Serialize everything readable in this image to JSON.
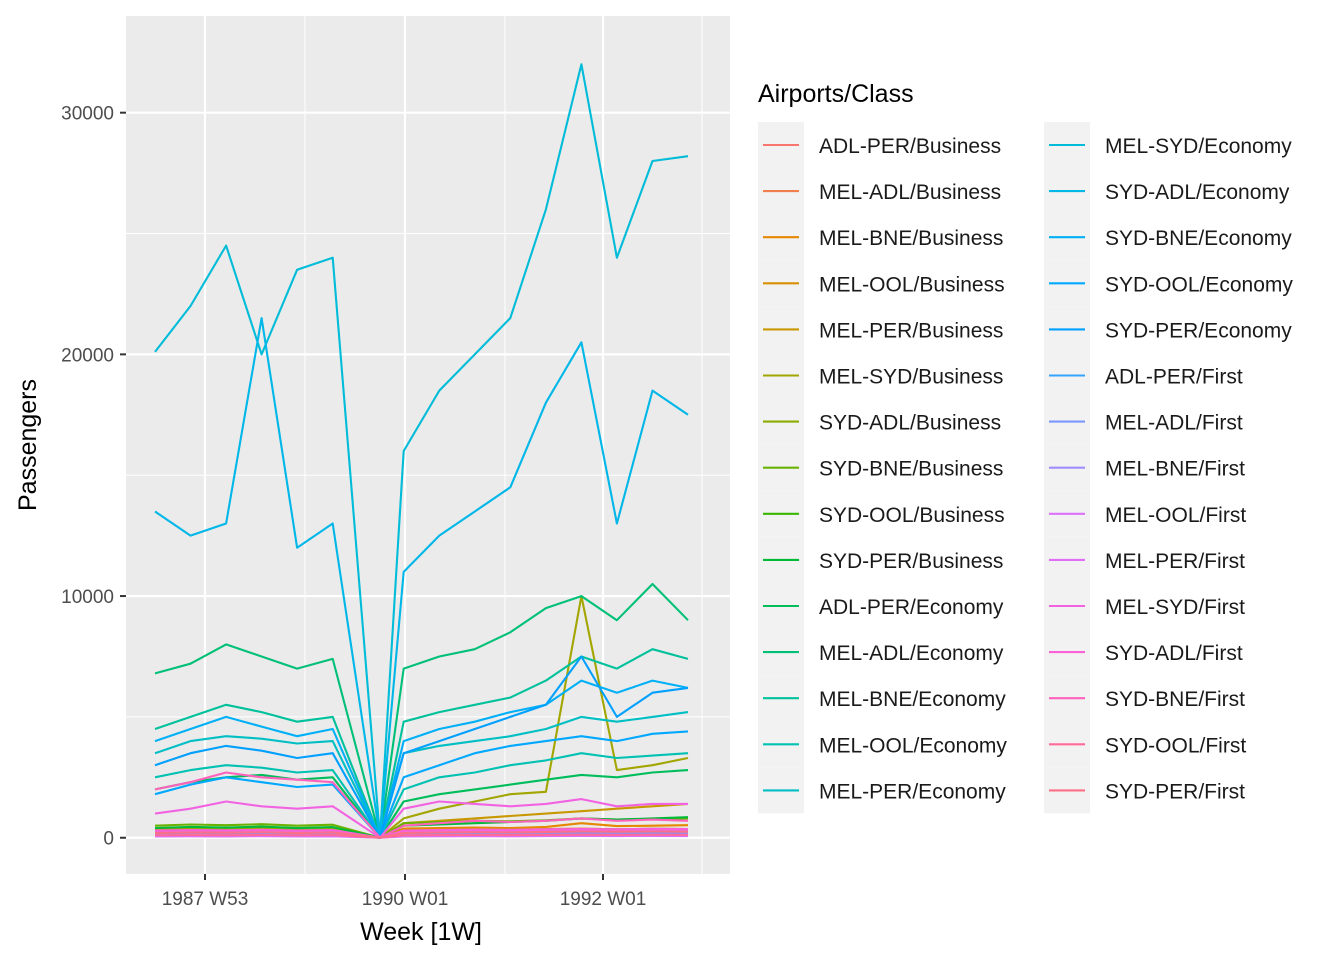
{
  "chart_data": {
    "type": "line",
    "title": "",
    "xlabel": "Week [1W]",
    "ylabel": "Passengers",
    "legend_title": "Airports/Class",
    "legend_position": "right",
    "grid": true,
    "x_ticks": [
      "1987 W53",
      "1990 W01",
      "1992 W01"
    ],
    "y_ticks": [
      0,
      10000,
      20000,
      30000
    ],
    "xlim": [
      "1987 W26",
      "1993 W46"
    ],
    "ylim": [
      -1500,
      34000
    ],
    "x_range_weeks": [
      1987.45,
      1993.0
    ],
    "series": [
      {
        "name": "ADL-PER/Business",
        "color": "#F8766D",
        "values": [
          250,
          300,
          280,
          320,
          260,
          300,
          0,
          290,
          310,
          330,
          300,
          320,
          340,
          310,
          330,
          320
        ]
      },
      {
        "name": "MEL-ADL/Business",
        "color": "#F07E4E",
        "values": [
          300,
          320,
          310,
          340,
          300,
          330,
          0,
          320,
          340,
          350,
          330,
          360,
          380,
          350,
          370,
          360
        ]
      },
      {
        "name": "MEL-BNE/Business",
        "color": "#E58700",
        "values": [
          350,
          380,
          360,
          390,
          340,
          370,
          0,
          380,
          400,
          420,
          400,
          450,
          600,
          480,
          500,
          520
        ]
      },
      {
        "name": "MEL-OOL/Business",
        "color": "#D89000",
        "values": [
          100,
          120,
          110,
          130,
          100,
          120,
          0,
          110,
          120,
          130,
          120,
          130,
          140,
          130,
          140,
          130
        ]
      },
      {
        "name": "MEL-PER/Business",
        "color": "#C99800",
        "values": [
          300,
          320,
          340,
          350,
          330,
          340,
          0,
          600,
          700,
          800,
          900,
          1000,
          1100,
          1200,
          1300,
          1400
        ]
      },
      {
        "name": "MEL-SYD/Business",
        "color": "#A3A500",
        "values": [
          300,
          350,
          400,
          380,
          360,
          400,
          0,
          800,
          1200,
          1500,
          1800,
          1900,
          10000,
          2800,
          3000,
          3300
        ]
      },
      {
        "name": "SYD-ADL/Business",
        "color": "#8AAB00",
        "values": [
          300,
          320,
          310,
          330,
          300,
          320,
          0,
          300,
          320,
          340,
          330,
          350,
          360,
          350,
          370,
          360
        ]
      },
      {
        "name": "SYD-BNE/Business",
        "color": "#6BB100",
        "values": [
          500,
          550,
          520,
          560,
          500,
          540,
          0,
          600,
          650,
          700,
          680,
          720,
          800,
          750,
          780,
          800
        ]
      },
      {
        "name": "SYD-OOL/Business",
        "color": "#39B600",
        "values": [
          150,
          160,
          150,
          170,
          150,
          160,
          0,
          150,
          160,
          170,
          160,
          170,
          180,
          170,
          180,
          170
        ]
      },
      {
        "name": "SYD-PER/Business",
        "color": "#00BA38",
        "values": [
          400,
          450,
          420,
          460,
          400,
          440,
          0,
          500,
          550,
          600,
          650,
          700,
          800,
          750,
          800,
          850
        ]
      },
      {
        "name": "ADL-PER/Economy",
        "color": "#00BD5C",
        "values": [
          2000,
          2300,
          2500,
          2600,
          2400,
          2500,
          0,
          1500,
          1800,
          2000,
          2200,
          2400,
          2600,
          2500,
          2700,
          2800
        ]
      },
      {
        "name": "MEL-ADL/Economy",
        "color": "#00C078",
        "values": [
          6800,
          7200,
          8000,
          7500,
          7000,
          7400,
          0,
          7000,
          7500,
          7800,
          8500,
          9500,
          10000,
          9000,
          10500,
          9000
        ]
      },
      {
        "name": "MEL-BNE/Economy",
        "color": "#00C19C",
        "values": [
          4500,
          5000,
          5500,
          5200,
          4800,
          5000,
          0,
          4800,
          5200,
          5500,
          5800,
          6500,
          7500,
          7000,
          7800,
          7400
        ]
      },
      {
        "name": "MEL-OOL/Economy",
        "color": "#00C1B2",
        "values": [
          2500,
          2800,
          3000,
          2900,
          2700,
          2800,
          0,
          2000,
          2500,
          2700,
          3000,
          3200,
          3500,
          3300,
          3400,
          3500
        ]
      },
      {
        "name": "MEL-PER/Economy",
        "color": "#00BFC4",
        "values": [
          3500,
          4000,
          4200,
          4100,
          3900,
          4000,
          0,
          3500,
          3800,
          4000,
          4200,
          4500,
          5000,
          4800,
          5000,
          5200
        ]
      },
      {
        "name": "MEL-SYD/Economy",
        "color": "#00BCD8",
        "values": [
          20100,
          22000,
          24500,
          20000,
          23500,
          24000,
          0,
          16000,
          18500,
          20000,
          21500,
          26000,
          32000,
          24000,
          28000,
          28200
        ]
      },
      {
        "name": "SYD-ADL/Economy",
        "color": "#00B7E8",
        "values": [
          13500,
          12500,
          13000,
          21500,
          12000,
          13000,
          0,
          11000,
          12500,
          13500,
          14500,
          18000,
          20500,
          13000,
          18500,
          17500
        ]
      },
      {
        "name": "SYD-BNE/Economy",
        "color": "#00B0F6",
        "values": [
          4000,
          4500,
          5000,
          4600,
          4200,
          4500,
          0,
          4000,
          4500,
          4800,
          5200,
          5500,
          6500,
          6000,
          6500,
          6200
        ]
      },
      {
        "name": "SYD-OOL/Economy",
        "color": "#00A9FF",
        "values": [
          1800,
          2200,
          2500,
          2300,
          2100,
          2200,
          0,
          2500,
          3000,
          3500,
          3800,
          4000,
          4200,
          4000,
          4300,
          4400
        ]
      },
      {
        "name": "SYD-PER/Economy",
        "color": "#00A0FF",
        "values": [
          3000,
          3500,
          3800,
          3600,
          3300,
          3500,
          0,
          3500,
          4000,
          4500,
          5000,
          5500,
          7500,
          5000,
          6000,
          6200
        ]
      },
      {
        "name": "ADL-PER/First",
        "color": "#35A2FF",
        "values": [
          100,
          110,
          105,
          115,
          100,
          110,
          0,
          100,
          110,
          115,
          110,
          120,
          125,
          120,
          125,
          120
        ]
      },
      {
        "name": "MEL-ADL/First",
        "color": "#7997FF",
        "values": [
          150,
          160,
          155,
          165,
          150,
          160,
          0,
          150,
          160,
          165,
          160,
          170,
          175,
          170,
          175,
          170
        ]
      },
      {
        "name": "MEL-BNE/First",
        "color": "#9F8CFF",
        "values": [
          200,
          220,
          210,
          230,
          200,
          220,
          0,
          200,
          220,
          230,
          220,
          240,
          260,
          250,
          260,
          250
        ]
      },
      {
        "name": "MEL-OOL/First",
        "color": "#DC71FA",
        "values": [
          50,
          60,
          55,
          65,
          50,
          60,
          0,
          50,
          60,
          65,
          60,
          70,
          75,
          70,
          75,
          70
        ]
      },
      {
        "name": "MEL-PER/First",
        "color": "#E26EF7",
        "values": [
          250,
          280,
          300,
          290,
          270,
          280,
          0,
          250,
          280,
          300,
          290,
          310,
          330,
          320,
          330,
          320
        ]
      },
      {
        "name": "MEL-SYD/First",
        "color": "#F263E2",
        "values": [
          1000,
          1200,
          1500,
          1300,
          1200,
          1300,
          0,
          1200,
          1500,
          1400,
          1300,
          1400,
          1600,
          1300,
          1400,
          1400
        ]
      },
      {
        "name": "SYD-ADL/First",
        "color": "#FB61D7",
        "values": [
          300,
          320,
          310,
          330,
          300,
          320,
          0,
          300,
          320,
          340,
          330,
          350,
          360,
          350,
          370,
          360
        ]
      },
      {
        "name": "SYD-BNE/First",
        "color": "#FF62BC",
        "values": [
          2000,
          2300,
          2700,
          2500,
          2400,
          2300,
          0,
          500,
          600,
          700,
          650,
          700,
          800,
          700,
          750,
          700
        ]
      },
      {
        "name": "SYD-OOL/First",
        "color": "#FF6A98",
        "values": [
          100,
          110,
          105,
          115,
          100,
          110,
          0,
          100,
          110,
          115,
          110,
          120,
          125,
          120,
          125,
          120
        ]
      },
      {
        "name": "SYD-PER/First",
        "color": "#FD6F86",
        "values": [
          200,
          220,
          210,
          230,
          200,
          220,
          0,
          200,
          220,
          230,
          220,
          240,
          260,
          250,
          260,
          250
        ]
      }
    ]
  }
}
